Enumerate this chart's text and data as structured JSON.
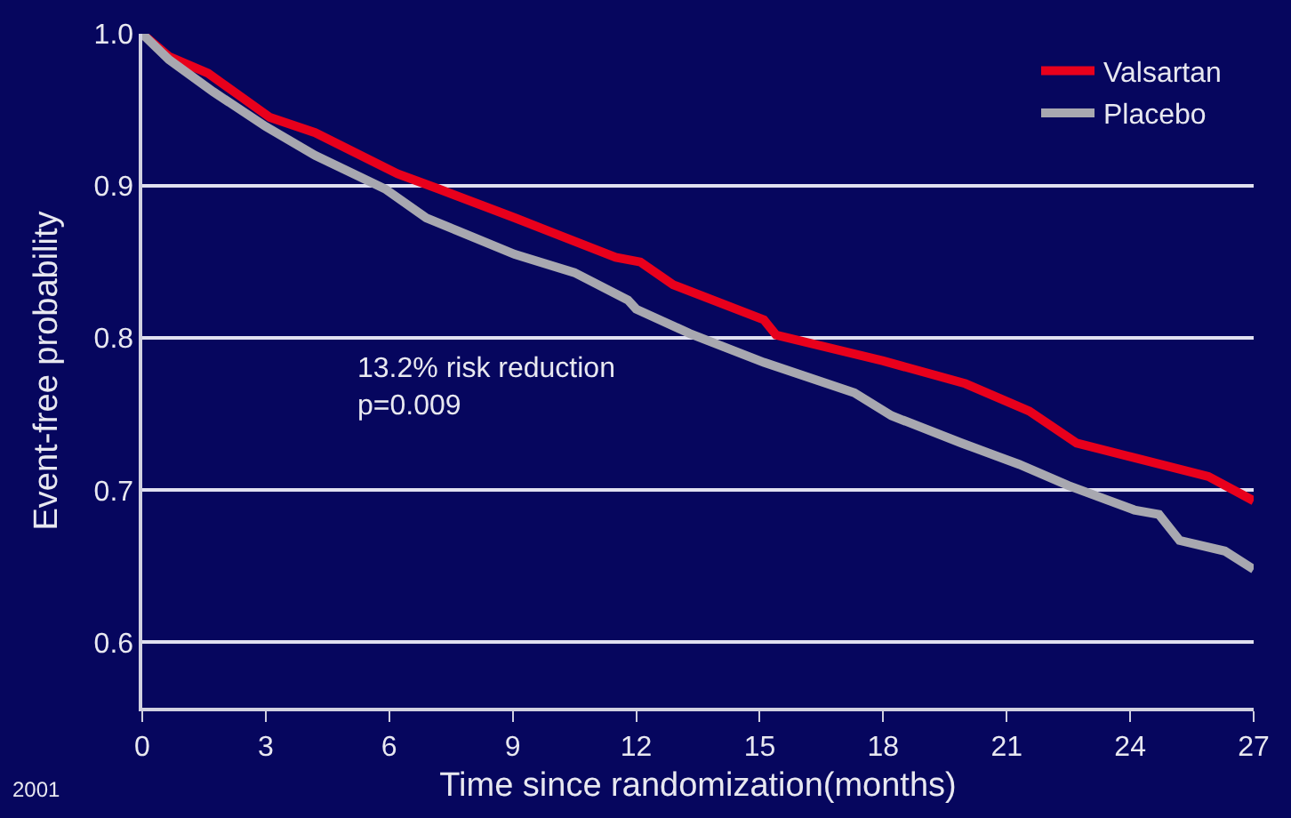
{
  "chart_data": {
    "type": "line",
    "xlabel": "Time since randomization(months)",
    "ylabel": "Event-free probability",
    "xlim": [
      0,
      27
    ],
    "xticks": [
      0,
      3,
      6,
      9,
      12,
      15,
      18,
      21,
      24,
      27
    ],
    "ylim": [
      0.557,
      1.0
    ],
    "yticks": [
      0.6,
      0.7,
      0.8,
      0.9,
      {
        "value": 1.0,
        "label": "1.0"
      }
    ],
    "grid": "y",
    "legend": "top right",
    "marker": "none",
    "line_style": "solid",
    "series": [
      {
        "name": "Valsartan",
        "color": "#e8001c",
        "x": [
          0,
          0.65,
          1.6,
          3.1,
          4.2,
          6.2,
          7.2,
          9.05,
          11.5,
          12.1,
          12.9,
          15.1,
          15.4,
          18,
          20,
          21.55,
          22.7,
          24,
          25.9,
          27
        ],
        "values": [
          1.0,
          0.985,
          0.974,
          0.945,
          0.935,
          0.908,
          0.898,
          0.879,
          0.853,
          0.85,
          0.835,
          0.812,
          0.802,
          0.785,
          0.77,
          0.752,
          0.731,
          0.722,
          0.709,
          0.693
        ]
      },
      {
        "name": "Placebo",
        "color": "#a8a8b0",
        "x": [
          0,
          0.65,
          1.72,
          3.0,
          4.2,
          5.9,
          6.9,
          9.05,
          10.5,
          11.8,
          12.0,
          13.3,
          15.1,
          17.3,
          18.2,
          19.9,
          21.3,
          22.5,
          24.1,
          24.7,
          25.2,
          26.3,
          27
        ],
        "values": [
          1.0,
          0.983,
          0.962,
          0.939,
          0.92,
          0.898,
          0.879,
          0.855,
          0.843,
          0.825,
          0.819,
          0.803,
          0.784,
          0.764,
          0.749,
          0.731,
          0.717,
          0.703,
          0.687,
          0.684,
          0.667,
          0.66,
          0.648
        ]
      }
    ],
    "annotations": [
      "13.2% risk reduction\np=0.009",
      "2001"
    ]
  }
}
